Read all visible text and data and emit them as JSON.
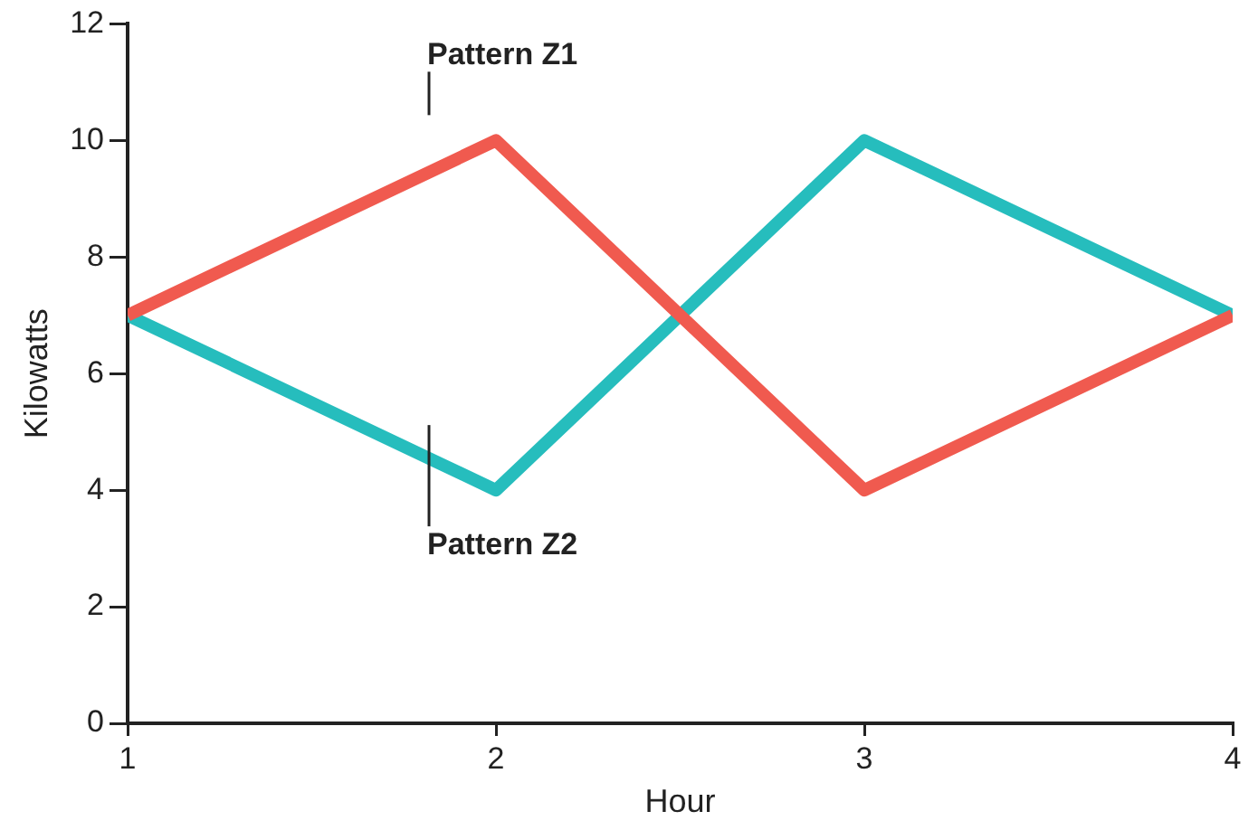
{
  "chart_data": {
    "type": "line",
    "xlabel": "Hour",
    "ylabel": "Kilowatts",
    "x": [
      1,
      2,
      3,
      4
    ],
    "series": [
      {
        "name": "Pattern Z1",
        "color": "#f05a4f",
        "values": [
          7,
          10,
          4,
          7
        ]
      },
      {
        "name": "Pattern Z2",
        "color": "#26bdbd",
        "values": [
          7,
          4,
          10,
          7
        ]
      }
    ],
    "xlim": [
      1,
      4
    ],
    "xticks": [
      1,
      2,
      3,
      4
    ],
    "ylim": [
      0,
      12
    ],
    "yticks": [
      0,
      2,
      4,
      6,
      8,
      10,
      12
    ],
    "grid": false,
    "legend": false,
    "marker": "none",
    "line_style": "solid"
  }
}
